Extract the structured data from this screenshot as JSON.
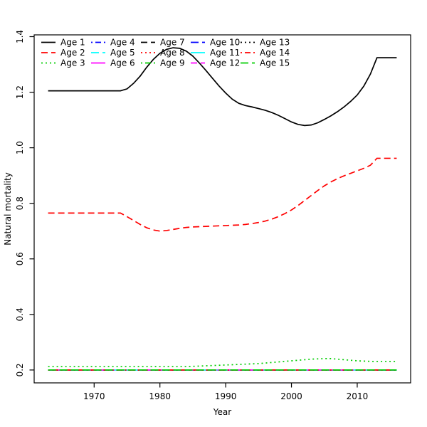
{
  "page": {
    "background": "#ffffff"
  },
  "chart_data": {
    "type": "line",
    "title": "",
    "xlabel": "Year",
    "ylabel": "Natural mortality",
    "xlim": [
      1960.88,
      2018.12
    ],
    "ylim": [
      0.1536,
      1.4064
    ],
    "x_ticks": [
      1970,
      1980,
      1990,
      2000,
      2010
    ],
    "y_ticks": [
      0.2,
      0.4,
      0.6,
      0.8,
      1.0,
      1.2,
      1.4
    ],
    "grid": false,
    "legend": {
      "position": "top-left",
      "ncol": 3,
      "columns": 5,
      "border": false
    },
    "x": [
      1963,
      1964,
      1965,
      1966,
      1967,
      1968,
      1969,
      1970,
      1971,
      1972,
      1973,
      1974,
      1975,
      1976,
      1977,
      1978,
      1979,
      1980,
      1981,
      1982,
      1983,
      1984,
      1985,
      1986,
      1987,
      1988,
      1989,
      1990,
      1991,
      1992,
      1993,
      1994,
      1995,
      1996,
      1997,
      1998,
      1999,
      2000,
      2001,
      2002,
      2003,
      2004,
      2005,
      2006,
      2007,
      2008,
      2009,
      2010,
      2011,
      2012,
      2013,
      2014,
      2015,
      2016
    ],
    "series": [
      {
        "name": "Age 1",
        "color": "#000000",
        "linetype": "solid",
        "values": [
          1.205,
          1.205,
          1.205,
          1.205,
          1.205,
          1.205,
          1.205,
          1.205,
          1.205,
          1.205,
          1.205,
          1.205,
          1.212,
          1.232,
          1.258,
          1.29,
          1.318,
          1.34,
          1.354,
          1.36,
          1.358,
          1.348,
          1.33,
          1.305,
          1.278,
          1.25,
          1.222,
          1.197,
          1.175,
          1.16,
          1.152,
          1.147,
          1.141,
          1.135,
          1.127,
          1.117,
          1.105,
          1.093,
          1.084,
          1.08,
          1.082,
          1.09,
          1.102,
          1.115,
          1.13,
          1.147,
          1.167,
          1.19,
          1.222,
          1.265,
          1.324,
          1.324,
          1.324,
          1.324
        ]
      },
      {
        "name": "Age 2",
        "color": "#ff0000",
        "linetype": "dashed",
        "values": [
          0.765,
          0.765,
          0.765,
          0.765,
          0.765,
          0.765,
          0.765,
          0.765,
          0.765,
          0.765,
          0.765,
          0.765,
          0.752,
          0.738,
          0.724,
          0.712,
          0.704,
          0.7,
          0.702,
          0.706,
          0.71,
          0.713,
          0.715,
          0.716,
          0.717,
          0.718,
          0.719,
          0.72,
          0.721,
          0.722,
          0.724,
          0.727,
          0.731,
          0.736,
          0.743,
          0.752,
          0.763,
          0.776,
          0.792,
          0.81,
          0.828,
          0.846,
          0.863,
          0.877,
          0.889,
          0.899,
          0.908,
          0.917,
          0.926,
          0.937,
          0.962,
          0.962,
          0.962,
          0.962
        ]
      },
      {
        "name": "Age 3",
        "color": "#00cd00",
        "linetype": "dotted",
        "values": [
          0.212,
          0.212,
          0.212,
          0.212,
          0.212,
          0.212,
          0.212,
          0.212,
          0.212,
          0.212,
          0.212,
          0.212,
          0.212,
          0.212,
          0.212,
          0.212,
          0.212,
          0.212,
          0.212,
          0.212,
          0.212,
          0.212,
          0.213,
          0.214,
          0.215,
          0.216,
          0.217,
          0.218,
          0.219,
          0.22,
          0.221,
          0.222,
          0.223,
          0.225,
          0.227,
          0.229,
          0.231,
          0.233,
          0.235,
          0.237,
          0.239,
          0.24,
          0.241,
          0.241,
          0.239,
          0.237,
          0.235,
          0.233,
          0.232,
          0.231,
          0.231,
          0.231,
          0.231,
          0.231
        ]
      },
      {
        "name": "Age 4",
        "color": "#0000ff",
        "linetype": "dotdash",
        "constant": 0.2
      },
      {
        "name": "Age 5",
        "color": "#00ffff",
        "linetype": "longdash",
        "constant": 0.2
      },
      {
        "name": "Age 6",
        "color": "#ff00ff",
        "linetype": "solid",
        "constant": 0.2
      },
      {
        "name": "Age 7",
        "color": "#000000",
        "linetype": "dashed",
        "constant": 0.2
      },
      {
        "name": "Age 8",
        "color": "#ff0000",
        "linetype": "dotted",
        "constant": 0.2
      },
      {
        "name": "Age 9",
        "color": "#00cd00",
        "linetype": "dotdash",
        "constant": 0.2
      },
      {
        "name": "Age 10",
        "color": "#0000ff",
        "linetype": "longdash",
        "constant": 0.2
      },
      {
        "name": "Age 11",
        "color": "#00ffff",
        "linetype": "solid",
        "constant": 0.2
      },
      {
        "name": "Age 12",
        "color": "#ff00ff",
        "linetype": "dashed",
        "constant": 0.2
      },
      {
        "name": "Age 13",
        "color": "#000000",
        "linetype": "dotted",
        "constant": 0.2
      },
      {
        "name": "Age 14",
        "color": "#ff0000",
        "linetype": "dotdash",
        "constant": 0.2
      },
      {
        "name": "Age 15",
        "color": "#00cd00",
        "linetype": "longdash",
        "constant": 0.2
      }
    ]
  }
}
